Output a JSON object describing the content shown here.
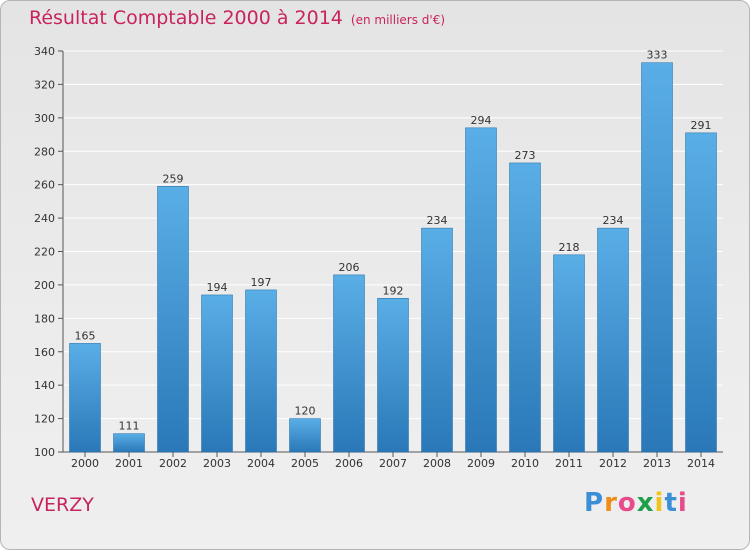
{
  "title": "Résultat Comptable 2000 à 2014",
  "subtitle": "(en milliers d'€)",
  "town": "VERZY",
  "logo": {
    "letters": [
      "P",
      "r",
      "o",
      "x",
      "i",
      "t",
      "i"
    ],
    "colors": [
      "#3a8fd6",
      "#f08c1a",
      "#e84a8c",
      "#1ea04a",
      "#f0c419",
      "#3a8fd6",
      "#e84a8c"
    ]
  },
  "colors": {
    "accent": "#c8235e",
    "bar_light": "#5aaee6",
    "bar_dark": "#2a78b8"
  },
  "chart_data": {
    "type": "bar",
    "title": "Résultat Comptable 2000 à 2014",
    "subtitle": "(en milliers d'€)",
    "xlabel": "",
    "ylabel": "",
    "categories": [
      "2000",
      "2001",
      "2002",
      "2003",
      "2004",
      "2005",
      "2006",
      "2007",
      "2008",
      "2009",
      "2010",
      "2011",
      "2012",
      "2013",
      "2014"
    ],
    "values": [
      165,
      111,
      259,
      194,
      197,
      120,
      206,
      192,
      234,
      294,
      273,
      218,
      234,
      333,
      291
    ],
    "ylim": [
      100,
      340
    ],
    "yticks": [
      100,
      120,
      140,
      160,
      180,
      200,
      220,
      240,
      260,
      280,
      300,
      320,
      340
    ],
    "grid": true
  }
}
